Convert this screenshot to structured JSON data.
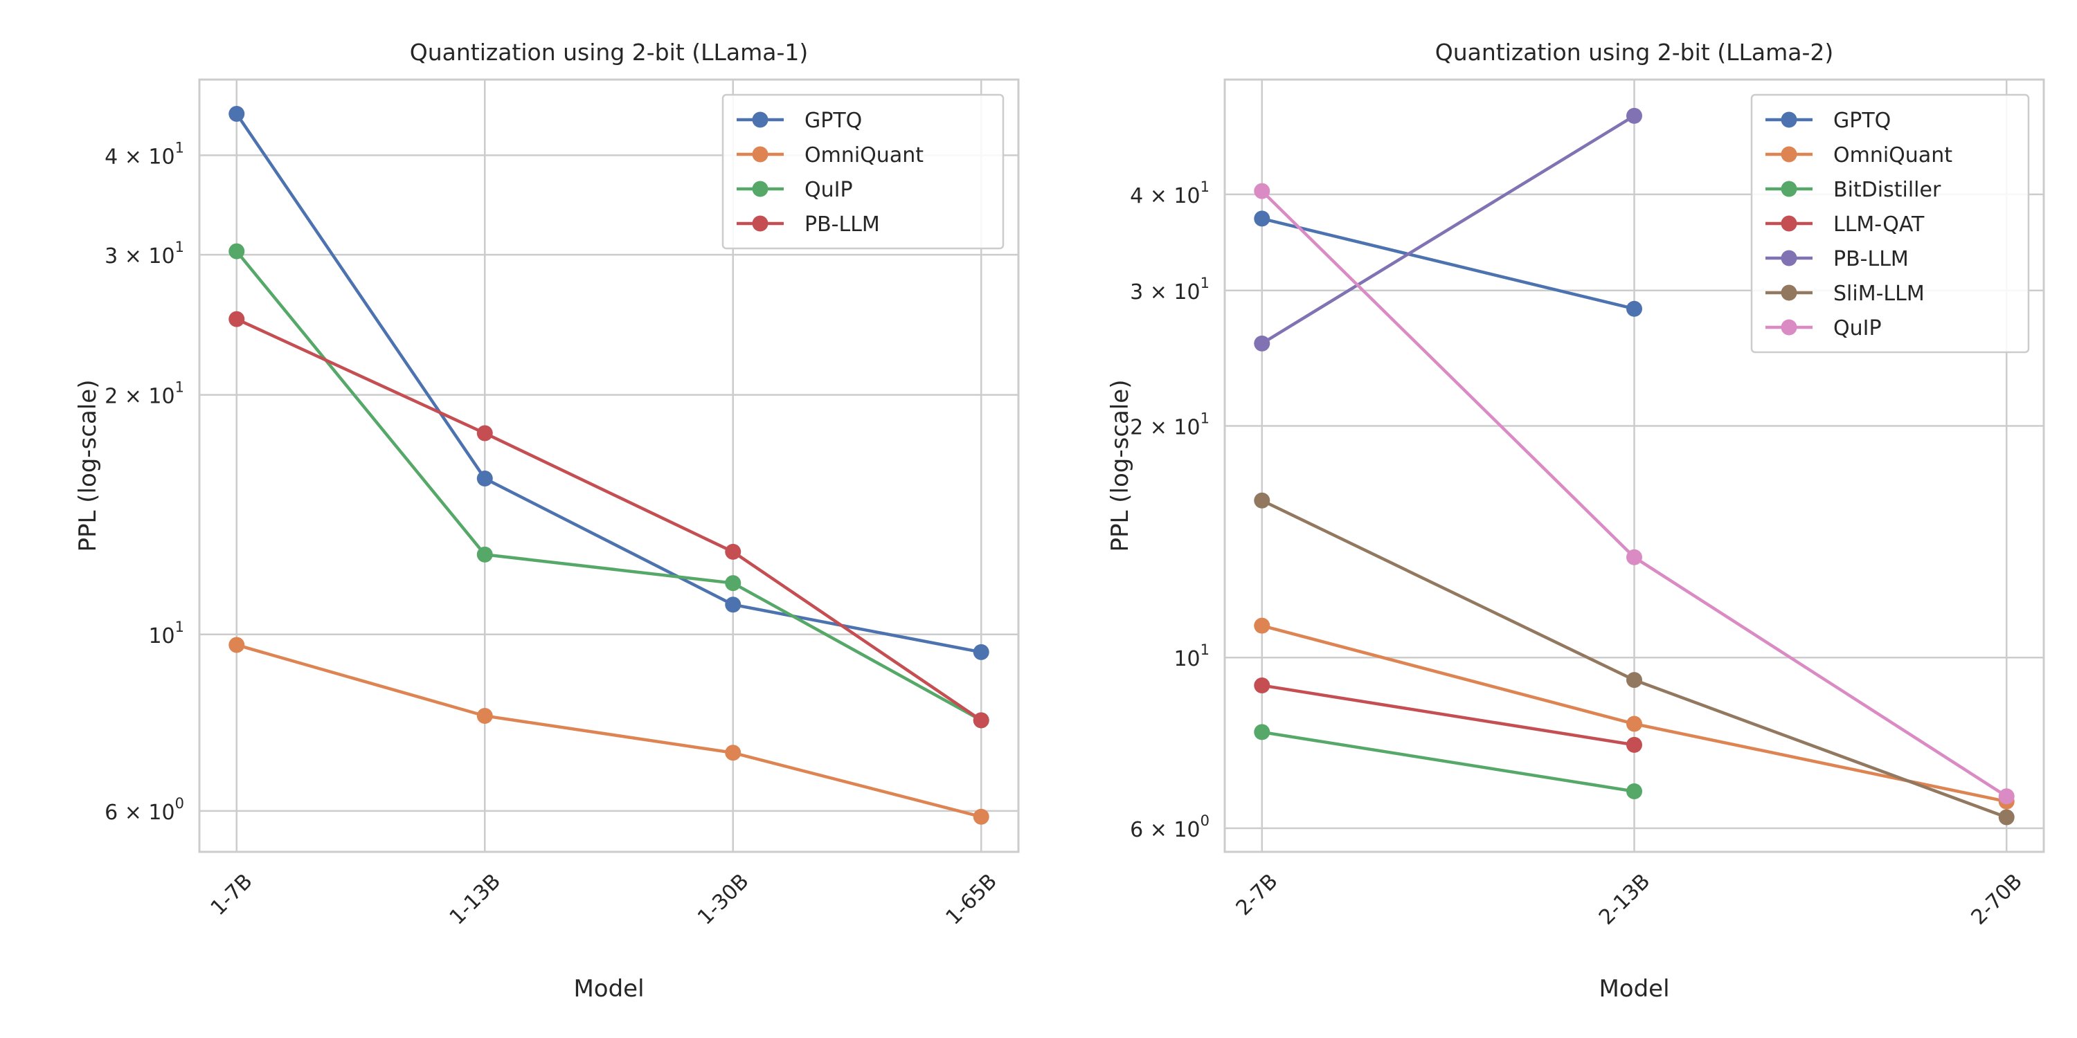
{
  "chart_data": [
    {
      "type": "line",
      "title": "Quantization using 2-bit (LLama-1)",
      "xlabel": "Model",
      "ylabel": "PPL (log-scale)",
      "yscale": "log",
      "ylim": [
        5.33,
        49.8
      ],
      "yticks": [
        {
          "value": 6,
          "mant": "6 × 10",
          "exp": "0"
        },
        {
          "value": 10,
          "mant": "10",
          "exp": "1"
        },
        {
          "value": 20,
          "mant": "2 × 10",
          "exp": "1"
        },
        {
          "value": 30,
          "mant": "3 × 10",
          "exp": "1"
        },
        {
          "value": 40,
          "mant": "4 × 10",
          "exp": "1"
        }
      ],
      "categories": [
        "1-7B",
        "1-13B",
        "1-30B",
        "1-65B"
      ],
      "grid": true,
      "legend_position": "top-right",
      "series": [
        {
          "name": "GPTQ",
          "color": "#4c72b0",
          "values": [
            45.1,
            15.7,
            10.9,
            9.5
          ]
        },
        {
          "name": "OmniQuant",
          "color": "#dd8452",
          "values": [
            9.7,
            7.9,
            7.1,
            5.9
          ]
        },
        {
          "name": "QuIP",
          "color": "#55a868",
          "values": [
            30.3,
            12.6,
            11.6,
            7.8
          ]
        },
        {
          "name": "PB-LLM",
          "color": "#c44e52",
          "values": [
            24.9,
            17.9,
            12.7,
            7.8
          ]
        }
      ]
    },
    {
      "type": "line",
      "title": "Quantization using 2-bit (LLama-2)",
      "xlabel": "Model",
      "ylabel": "PPL (log-scale)",
      "yscale": "log",
      "ylim": [
        5.59,
        56.4
      ],
      "yticks": [
        {
          "value": 6,
          "mant": "6 × 10",
          "exp": "0"
        },
        {
          "value": 10,
          "mant": "10",
          "exp": "1"
        },
        {
          "value": 20,
          "mant": "2 × 10",
          "exp": "1"
        },
        {
          "value": 30,
          "mant": "3 × 10",
          "exp": "1"
        },
        {
          "value": 40,
          "mant": "4 × 10",
          "exp": "1"
        }
      ],
      "categories": [
        "2-7B",
        "2-13B",
        "2-70B"
      ],
      "grid": true,
      "legend_position": "top-right",
      "series": [
        {
          "name": "GPTQ",
          "color": "#4c72b0",
          "values": [
            37.2,
            28.4,
            null
          ]
        },
        {
          "name": "OmniQuant",
          "color": "#dd8452",
          "values": [
            11.0,
            8.2,
            6.5
          ]
        },
        {
          "name": "BitDistiller",
          "color": "#55a868",
          "values": [
            8.0,
            6.7,
            null
          ]
        },
        {
          "name": "LLM-QAT",
          "color": "#c44e52",
          "values": [
            9.2,
            7.7,
            null
          ]
        },
        {
          "name": "PB-LLM",
          "color": "#8172b3",
          "values": [
            25.6,
            50.6,
            null
          ]
        },
        {
          "name": "SliM-LLM",
          "color": "#937860",
          "values": [
            16.0,
            9.35,
            6.2
          ]
        },
        {
          "name": "QuIP",
          "color": "#da8bc3",
          "values": [
            40.4,
            13.5,
            6.6
          ]
        }
      ]
    }
  ]
}
